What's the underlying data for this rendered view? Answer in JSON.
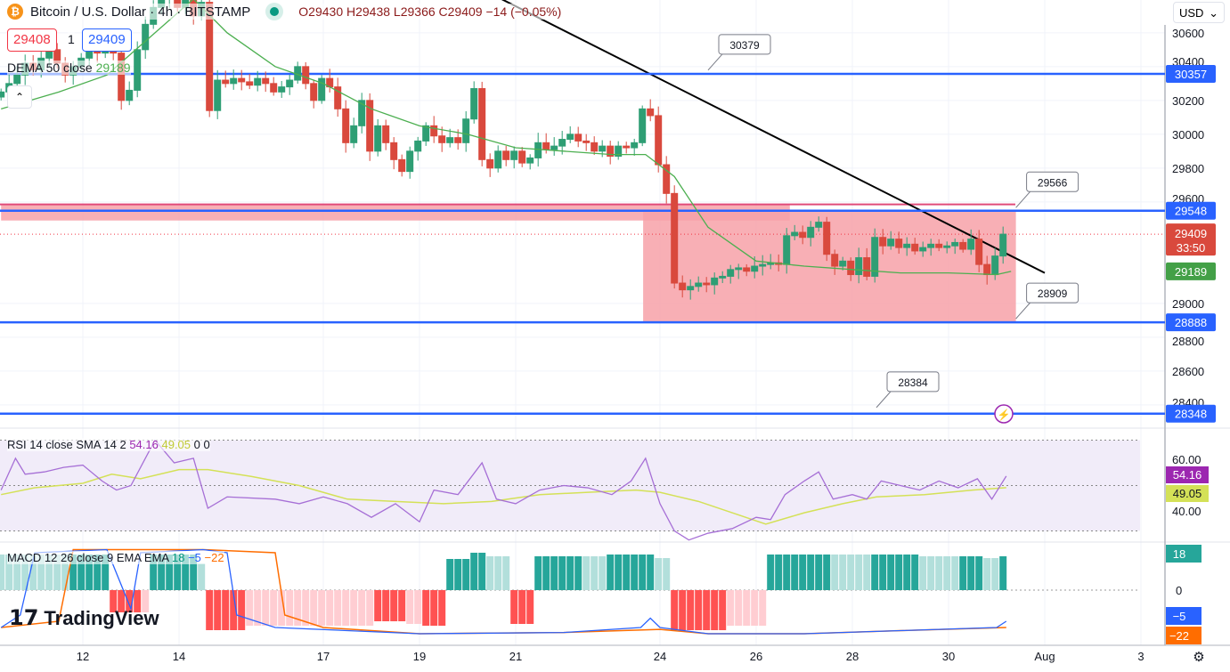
{
  "header": {
    "title": "Bitcoin / U.S. Dollar · 4h · BITSTAMP",
    "ohlc": "O29430 H29438 L29366 C29409 −14 (−0.05%)",
    "sell_price": "29408",
    "spread": "1",
    "buy_price": "29409",
    "dema_label": "DEMA 50 close",
    "dema_value": "29189",
    "currency": "USD",
    "logo": "TradingView"
  },
  "colors": {
    "up": "#089981",
    "down": "#f23645",
    "level": "#2962ff",
    "dema": "#4caf50",
    "rsi": "#9c27b0",
    "rsi_sma": "#d4e157",
    "macd": "#2962ff",
    "signal": "#ff6d00",
    "zone": "#f7a1a8"
  },
  "chart_data": [
    {
      "type": "candlestick",
      "title": "Bitcoin / U.S. Dollar · 4h · BITSTAMP",
      "ylim": [
        28250,
        30650
      ],
      "y_ticks": [
        "30600",
        "30400",
        "30200",
        "30000",
        "29800",
        "29600",
        "29000",
        "28800",
        "28600",
        "28400"
      ],
      "x_ticks": [
        {
          "label": "12",
          "day": 12
        },
        {
          "label": "14",
          "day": 14
        },
        {
          "label": "17",
          "day": 17
        },
        {
          "label": "19",
          "day": 19
        },
        {
          "label": "21",
          "day": 21
        },
        {
          "label": "24",
          "day": 24
        },
        {
          "label": "26",
          "day": 26
        },
        {
          "label": "28",
          "day": 28
        },
        {
          "label": "30",
          "day": 30
        },
        {
          "label": "Aug",
          "day": 32
        },
        {
          "label": "3",
          "day": 34
        }
      ],
      "start_day": 10.3,
      "candles_per_day": 6,
      "closes": [
        30250,
        30300,
        30350,
        30420,
        30380,
        30450,
        30500,
        30420,
        30350,
        30400,
        30450,
        30520,
        30480,
        30550,
        30480,
        30200,
        30260,
        30500,
        30650,
        30750,
        30800,
        30850,
        30750,
        30800,
        30700,
        30780,
        30140,
        30320,
        30300,
        30330,
        30310,
        30290,
        30330,
        30300,
        30250,
        30280,
        30320,
        30400,
        30300,
        30200,
        30330,
        30280,
        30150,
        29950,
        30050,
        30200,
        29900,
        30050,
        29950,
        29850,
        29780,
        29900,
        29960,
        30050,
        29990,
        29950,
        29980,
        29950,
        30090,
        30270,
        29850,
        29800,
        29900,
        29850,
        29900,
        29830,
        29860,
        29950,
        29910,
        29930,
        29970,
        30000,
        29960,
        29950,
        29900,
        29930,
        29870,
        29930,
        29920,
        29950,
        30150,
        30110,
        29820,
        29650,
        29120,
        29080,
        29100,
        29120,
        29110,
        29150,
        29160,
        29200,
        29210,
        29190,
        29220,
        29230,
        29240,
        29230,
        29400,
        29420,
        29390,
        29450,
        29480,
        29290,
        29220,
        29250,
        29170,
        29270,
        29160,
        29390,
        29340,
        29380,
        29330,
        29350,
        29310,
        29330,
        29350,
        29330,
        29340,
        29360,
        29320,
        29380,
        29230,
        29170,
        29280,
        29409
      ],
      "dema": [
        [
          10.3,
          30150
        ],
        [
          11.5,
          30250
        ],
        [
          12.5,
          30350
        ],
        [
          13.5,
          30600
        ],
        [
          14.3,
          30800
        ],
        [
          15,
          30600
        ],
        [
          16,
          30400
        ],
        [
          17,
          30300
        ],
        [
          18,
          30150
        ],
        [
          19,
          30050
        ],
        [
          20,
          30000
        ],
        [
          21,
          29920
        ],
        [
          22,
          29900
        ],
        [
          23,
          29880
        ],
        [
          23.7,
          29880
        ],
        [
          24.3,
          29750
        ],
        [
          25,
          29450
        ],
        [
          26,
          29250
        ],
        [
          27,
          29220
        ],
        [
          28,
          29200
        ],
        [
          29,
          29180
        ],
        [
          30,
          29180
        ],
        [
          31,
          29170
        ],
        [
          31.3,
          29189
        ]
      ],
      "levels": [
        {
          "label": "30357",
          "value": 30357
        },
        {
          "label": "29548",
          "value": 29548
        },
        {
          "label": "28888",
          "value": 28888
        },
        {
          "label": "28348",
          "value": 28348
        }
      ],
      "callouts": [
        {
          "label": "30379",
          "day": 25.0,
          "value": 30379
        },
        {
          "label": "29566",
          "day": 31.4,
          "value": 29566
        },
        {
          "label": "28909",
          "day": 31.4,
          "value": 28909
        },
        {
          "label": "28384",
          "day": 28.5,
          "value": 28384
        }
      ],
      "trendline": [
        [
          20.7,
          30800
        ],
        [
          32.0,
          29180
        ]
      ],
      "zones": [
        {
          "from_day": 10.3,
          "to_day": 26.7,
          "top": 29585,
          "bottom": 29490
        },
        {
          "from_day": 23.65,
          "to_day": 31.4,
          "top": 29548,
          "bottom": 28888
        }
      ],
      "last_price": {
        "value": "29409",
        "countdown": "33:50"
      },
      "dema_tag": "29189"
    },
    {
      "type": "line",
      "title": "RSI 14 close SMA 14 2",
      "values_label": [
        "54.16",
        "49.05",
        "0",
        "0"
      ],
      "ylim": [
        20,
        80
      ],
      "y_ticks": [
        "60.00",
        "40.00"
      ],
      "bands": [
        70,
        50,
        30
      ],
      "rsi": [
        [
          10.3,
          48
        ],
        [
          10.6,
          62
        ],
        [
          10.8,
          55
        ],
        [
          11.2,
          56
        ],
        [
          11.6,
          58
        ],
        [
          12.0,
          59
        ],
        [
          12.4,
          52
        ],
        [
          12.7,
          48
        ],
        [
          13,
          50
        ],
        [
          13.5,
          70
        ],
        [
          13.9,
          60
        ],
        [
          14.3,
          62
        ],
        [
          14.6,
          40
        ],
        [
          15,
          45
        ],
        [
          16,
          44
        ],
        [
          16.5,
          42
        ],
        [
          17,
          45
        ],
        [
          17.5,
          42
        ],
        [
          18,
          36
        ],
        [
          18.5,
          42
        ],
        [
          19,
          34
        ],
        [
          19.3,
          48
        ],
        [
          19.8,
          46
        ],
        [
          20.3,
          60
        ],
        [
          20.6,
          44
        ],
        [
          21,
          42
        ],
        [
          21.5,
          48
        ],
        [
          22,
          50
        ],
        [
          22.5,
          49
        ],
        [
          23,
          46
        ],
        [
          23.4,
          52
        ],
        [
          23.7,
          62
        ],
        [
          24,
          42
        ],
        [
          24.3,
          30
        ],
        [
          24.6,
          26
        ],
        [
          25,
          29
        ],
        [
          25.5,
          31
        ],
        [
          26,
          36
        ],
        [
          26.3,
          35
        ],
        [
          26.6,
          46
        ],
        [
          27,
          52
        ],
        [
          27.3,
          56
        ],
        [
          27.6,
          44
        ],
        [
          28,
          46
        ],
        [
          28.3,
          44
        ],
        [
          28.6,
          52
        ],
        [
          29,
          50
        ],
        [
          29.4,
          48
        ],
        [
          29.8,
          52
        ],
        [
          30.2,
          49
        ],
        [
          30.6,
          53
        ],
        [
          30.9,
          44
        ],
        [
          31.2,
          54.16
        ]
      ],
      "sma": [
        [
          10.3,
          46
        ],
        [
          11,
          49
        ],
        [
          12,
          51
        ],
        [
          12.6,
          55
        ],
        [
          13.2,
          53
        ],
        [
          14,
          57
        ],
        [
          14.6,
          57
        ],
        [
          15.5,
          54
        ],
        [
          16.5,
          50
        ],
        [
          17.5,
          44
        ],
        [
          18.5,
          43
        ],
        [
          19.5,
          42
        ],
        [
          20.5,
          43
        ],
        [
          21.5,
          46
        ],
        [
          22.5,
          47
        ],
        [
          23.5,
          48
        ],
        [
          24,
          47
        ],
        [
          24.8,
          43
        ],
        [
          25.5,
          38
        ],
        [
          26.2,
          33
        ],
        [
          27,
          38
        ],
        [
          27.8,
          42
        ],
        [
          28.5,
          45
        ],
        [
          29.5,
          46
        ],
        [
          30.5,
          48
        ],
        [
          31.2,
          49.05
        ]
      ]
    },
    {
      "type": "bar+line",
      "title": "MACD 12 26 close 9 EMA EMA",
      "values_label": [
        "18",
        "−5",
        "−22"
      ],
      "y_ticks": [
        "0"
      ],
      "axis_tags": [
        "18",
        "−5",
        "−22"
      ],
      "histogram": [
        {
          "from": 0,
          "to": 8,
          "value": 40,
          "shade": "light"
        },
        {
          "from": 9,
          "to": 13,
          "value": 40,
          "shade": "dark"
        },
        {
          "from": 14,
          "to": 17,
          "value": -25,
          "shade": "dark"
        },
        {
          "from": 18,
          "to": 18,
          "value": -25,
          "shade": "light"
        },
        {
          "from": 19,
          "to": 24,
          "value": 40,
          "shade": "dark"
        },
        {
          "from": 25,
          "to": 25,
          "value": 30,
          "shade": "light"
        },
        {
          "from": 26,
          "to": 30,
          "value": -45,
          "shade": "dark"
        },
        {
          "from": 31,
          "to": 46,
          "value": -40,
          "shade": "light"
        },
        {
          "from": 47,
          "to": 50,
          "value": -35,
          "shade": "dark"
        },
        {
          "from": 51,
          "to": 52,
          "value": -38,
          "shade": "light"
        },
        {
          "from": 53,
          "to": 55,
          "value": -40,
          "shade": "dark"
        },
        {
          "from": 56,
          "to": 58,
          "value": 35,
          "shade": "dark"
        },
        {
          "from": 59,
          "to": 60,
          "value": 42,
          "shade": "dark"
        },
        {
          "from": 61,
          "to": 63,
          "value": 38,
          "shade": "light"
        },
        {
          "from": 64,
          "to": 66,
          "value": -38,
          "shade": "dark"
        },
        {
          "from": 67,
          "to": 72,
          "value": 38,
          "shade": "dark"
        },
        {
          "from": 73,
          "to": 75,
          "value": 38,
          "shade": "light"
        },
        {
          "from": 76,
          "to": 81,
          "value": 40,
          "shade": "dark"
        },
        {
          "from": 82,
          "to": 83,
          "value": 36,
          "shade": "light"
        },
        {
          "from": 84,
          "to": 90,
          "value": -45,
          "shade": "dark"
        },
        {
          "from": 91,
          "to": 95,
          "value": -40,
          "shade": "light"
        },
        {
          "from": 96,
          "to": 103,
          "value": 40,
          "shade": "dark"
        },
        {
          "from": 104,
          "to": 108,
          "value": 40,
          "shade": "light"
        },
        {
          "from": 109,
          "to": 114,
          "value": 40,
          "shade": "dark"
        },
        {
          "from": 115,
          "to": 119,
          "value": 38,
          "shade": "light"
        },
        {
          "from": 120,
          "to": 122,
          "value": 38,
          "shade": "dark"
        },
        {
          "from": 123,
          "to": 124,
          "value": 36,
          "shade": "light"
        },
        {
          "from": 125,
          "to": 125,
          "value": 38,
          "shade": "dark"
        }
      ],
      "macd": [
        [
          10.3,
          -6
        ],
        [
          10.7,
          -4
        ],
        [
          11,
          6
        ],
        [
          12.5,
          6.5
        ],
        [
          13,
          -3
        ],
        [
          13.2,
          6
        ],
        [
          14.5,
          6.5
        ],
        [
          15,
          6
        ],
        [
          15.2,
          -4
        ],
        [
          16,
          -6
        ],
        [
          19,
          -7
        ],
        [
          22,
          -6.8
        ],
        [
          23.6,
          -6
        ],
        [
          23.8,
          -4.5
        ],
        [
          24,
          -6
        ],
        [
          25,
          -7
        ],
        [
          27,
          -7
        ],
        [
          29,
          -6.5
        ],
        [
          31,
          -6
        ],
        [
          31.2,
          -5
        ]
      ],
      "signal": [
        [
          10.3,
          -6
        ],
        [
          11.5,
          -5
        ],
        [
          11.8,
          6.5
        ],
        [
          14.5,
          6.5
        ],
        [
          16,
          6
        ],
        [
          16.2,
          -4
        ],
        [
          17,
          -6
        ],
        [
          19,
          -7
        ],
        [
          22,
          -6.8
        ],
        [
          24,
          -6.3
        ],
        [
          25,
          -7
        ],
        [
          27,
          -7
        ],
        [
          29,
          -6.5
        ],
        [
          31.2,
          -6
        ]
      ]
    }
  ]
}
